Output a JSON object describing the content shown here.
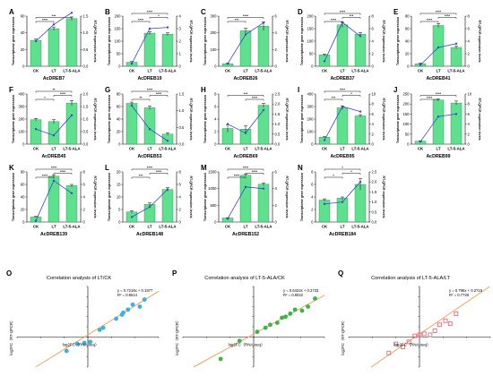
{
  "colors": {
    "bar": "#5ee08e",
    "bar_edge": "#238a4c",
    "line": "#3a47cc",
    "sig": "#111111",
    "scatter_1": "#3ab2dd",
    "scatter_2": "#39b54a",
    "scatter_3": "#e36b7c",
    "fit_line": "#f4a25e"
  },
  "shared": {
    "categories": [
      "CK",
      "LT",
      "LT-5-ALA"
    ],
    "ylabel_left": "Transcriptome gene expression",
    "ylabel_right": "RT-QPCR expression levels"
  },
  "chart_data": [
    {
      "type": "bar",
      "letter": "A",
      "title": "AcDREB7",
      "ylim_left": [
        0,
        60
      ],
      "yticks_left": [
        0,
        20,
        40,
        60
      ],
      "ylim_right": [
        0,
        1.5
      ],
      "yticks_right": [
        "0.0",
        "0.5",
        "1.0",
        "1.5"
      ],
      "bars": [
        31,
        45,
        57
      ],
      "errors": [
        1.5,
        2,
        2
      ],
      "line": [
        0.75,
        1.25,
        1.6
      ],
      "sig": [
        {
          "from": 0,
          "to": 1,
          "label": "****"
        },
        {
          "from": 0,
          "to": 2,
          "label": "***"
        }
      ]
    },
    {
      "type": "bar",
      "letter": "B",
      "title": "AcDREB19",
      "ylim_left": [
        0,
        200
      ],
      "yticks_left": [
        0,
        50,
        100,
        150,
        200
      ],
      "ylim_right": [
        0,
        4
      ],
      "yticks_right": [
        "0",
        "1",
        "2",
        "3",
        "4"
      ],
      "bars": [
        16,
        132,
        128
      ],
      "errors": [
        3,
        6,
        5
      ],
      "line": [
        0.2,
        3.0,
        3.1
      ],
      "sig": [
        {
          "from": 0,
          "to": 1,
          "label": "****"
        },
        {
          "from": 0,
          "to": 2,
          "label": "****"
        },
        {
          "from": 1,
          "to": 2,
          "label": "*"
        }
      ]
    },
    {
      "type": "bar",
      "letter": "C",
      "title": "AcDREB26",
      "ylim_left": [
        0,
        300
      ],
      "yticks_left": [
        0,
        100,
        200,
        300
      ],
      "ylim_right": [
        0,
        6
      ],
      "yticks_right": [
        "0",
        "2",
        "4",
        "6"
      ],
      "bars": [
        15,
        212,
        240
      ],
      "errors": [
        3,
        15,
        25
      ],
      "line": [
        0.3,
        3.8,
        5.2
      ],
      "sig": [
        {
          "from": 0,
          "to": 1,
          "label": "***"
        },
        {
          "from": 0,
          "to": 2,
          "label": "****"
        }
      ]
    },
    {
      "type": "bar",
      "letter": "D",
      "title": "AcDREB37",
      "ylim_left": [
        0,
        200
      ],
      "yticks_left": [
        0,
        50,
        100,
        150,
        200
      ],
      "ylim_right": [
        0,
        8
      ],
      "yticks_right": [
        "0",
        "2",
        "4",
        "6",
        "8"
      ],
      "bars": [
        45,
        165,
        128
      ],
      "errors": [
        4,
        10,
        6
      ],
      "line": [
        0.8,
        7.0,
        4.8
      ],
      "sig": [
        {
          "from": 0,
          "to": 1,
          "label": "****"
        },
        {
          "from": 0,
          "to": 2,
          "label": "****"
        },
        {
          "from": 1,
          "to": 2,
          "label": "***"
        }
      ]
    },
    {
      "type": "bar",
      "letter": "E",
      "title": "AcDREB41",
      "ylim_left": [
        0,
        80
      ],
      "yticks_left": [
        0,
        20,
        40,
        60,
        80
      ],
      "ylim_right": [
        0,
        8
      ],
      "yticks_right": [
        "0",
        "2",
        "4",
        "6",
        "8"
      ],
      "bars": [
        4,
        65,
        30
      ],
      "errors": [
        1,
        3,
        2
      ],
      "line": [
        0.2,
        3.0,
        3.6
      ],
      "sig": [
        {
          "from": 0,
          "to": 1,
          "label": "****"
        },
        {
          "from": 0,
          "to": 2,
          "label": "****"
        },
        {
          "from": 1,
          "to": 2,
          "label": "****"
        }
      ]
    },
    {
      "type": "bar",
      "letter": "F",
      "title": "AcDREB45",
      "ylim_left": [
        0,
        400
      ],
      "yticks_left": [
        0,
        100,
        200,
        300,
        400
      ],
      "ylim_right": [
        0,
        2.0
      ],
      "yticks_right": [
        "0.0",
        "0.5",
        "1.0",
        "1.5",
        "2.0"
      ],
      "bars": [
        195,
        180,
        328
      ],
      "errors": [
        10,
        15,
        20
      ],
      "line": [
        0.6,
        0.35,
        1.15
      ],
      "sig": [
        {
          "from": 0,
          "to": 1,
          "label": "*"
        },
        {
          "from": 0,
          "to": 2,
          "label": "**"
        },
        {
          "from": 1,
          "to": 2,
          "label": "****"
        }
      ]
    },
    {
      "type": "bar",
      "letter": "G",
      "title": "AcDREB53",
      "ylim_left": [
        0,
        80
      ],
      "yticks_left": [
        0,
        20,
        40,
        60,
        80
      ],
      "ylim_right": [
        0,
        1.5
      ],
      "yticks_right": [
        "0.0",
        "0.5",
        "1.0",
        "1.5"
      ],
      "bars": [
        65,
        58,
        16
      ],
      "errors": [
        2,
        3,
        2
      ],
      "line": [
        1.15,
        0.45,
        0.1
      ],
      "sig": [
        {
          "from": 0,
          "to": 1,
          "label": "**"
        },
        {
          "from": 0,
          "to": 2,
          "label": "****"
        },
        {
          "from": 1,
          "to": 2,
          "label": "****"
        }
      ]
    },
    {
      "type": "bar",
      "letter": "H",
      "title": "AcDREB69",
      "ylim_left": [
        0,
        8
      ],
      "yticks_left": [
        0,
        2,
        4,
        6,
        8
      ],
      "ylim_right": [
        0,
        2.5
      ],
      "yticks_right": [
        "0.0",
        "0.5",
        "1.0",
        "1.5",
        "2.0",
        "2.5"
      ],
      "bars": [
        2.5,
        2.4,
        6.2
      ],
      "errors": [
        0.6,
        0.5,
        0.3
      ],
      "line": [
        1.0,
        0.55,
        1.7
      ],
      "sig": [
        {
          "from": 0,
          "to": 2,
          "label": "***"
        },
        {
          "from": 1,
          "to": 2,
          "label": "****"
        }
      ]
    },
    {
      "type": "bar",
      "letter": "I",
      "title": "AcDREB95",
      "ylim_left": [
        0,
        400
      ],
      "yticks_left": [
        0,
        100,
        200,
        300,
        400
      ],
      "ylim_right": [
        0,
        10
      ],
      "yticks_right": [
        "0",
        "2",
        "4",
        "6",
        "8",
        "10"
      ],
      "bars": [
        55,
        290,
        225
      ],
      "errors": [
        5,
        15,
        10
      ],
      "line": [
        0.8,
        7.5,
        6.5
      ],
      "sig": [
        {
          "from": 0,
          "to": 1,
          "label": "***"
        },
        {
          "from": 0,
          "to": 2,
          "label": "****"
        },
        {
          "from": 1,
          "to": 2,
          "label": "*"
        }
      ]
    },
    {
      "type": "bar",
      "letter": "J",
      "title": "AcDREB99",
      "ylim_left": [
        0,
        250
      ],
      "yticks_left": [
        0,
        50,
        100,
        150,
        200,
        250
      ],
      "ylim_right": [
        0,
        10
      ],
      "yticks_right": [
        "0",
        "2",
        "4",
        "6",
        "8",
        "10"
      ],
      "bars": [
        15,
        220,
        205
      ],
      "errors": [
        2,
        5,
        10
      ],
      "line": [
        0.5,
        5.5,
        6.0
      ],
      "sig": [
        {
          "from": 0,
          "to": 1,
          "label": "****"
        },
        {
          "from": 0,
          "to": 2,
          "label": "****"
        }
      ]
    },
    {
      "type": "bar",
      "letter": "K",
      "title": "AcDREB139",
      "ylim_left": [
        0,
        80
      ],
      "yticks_left": [
        0,
        20,
        40,
        60,
        80
      ],
      "ylim_right": [
        0,
        8
      ],
      "yticks_right": [
        "0",
        "2",
        "4",
        "6",
        "8"
      ],
      "bars": [
        8,
        73,
        58
      ],
      "errors": [
        1,
        2,
        2
      ],
      "line": [
        0.2,
        6.6,
        4.6
      ],
      "sig": [
        {
          "from": 0,
          "to": 1,
          "label": "****"
        },
        {
          "from": 0,
          "to": 2,
          "label": "****"
        },
        {
          "from": 1,
          "to": 2,
          "label": "****"
        }
      ]
    },
    {
      "type": "bar",
      "letter": "L",
      "title": "AcDREB148",
      "ylim_left": [
        0,
        20
      ],
      "yticks_left": [
        0,
        5,
        10,
        15,
        20
      ],
      "ylim_right": [
        0,
        8
      ],
      "yticks_right": [
        "0",
        "2",
        "4",
        "6",
        "8"
      ],
      "bars": [
        4,
        7,
        13
      ],
      "errors": [
        0.5,
        0.6,
        0.7
      ],
      "line": [
        0.8,
        2.4,
        5.2
      ],
      "sig": [
        {
          "from": 0,
          "to": 1,
          "label": "***"
        },
        {
          "from": 0,
          "to": 2,
          "label": "****"
        },
        {
          "from": 1,
          "to": 2,
          "label": "****"
        }
      ]
    },
    {
      "type": "bar",
      "letter": "M",
      "title": "AcDREB152",
      "ylim_left": [
        0,
        1500
      ],
      "yticks_left": [
        0,
        500,
        1000,
        1500
      ],
      "ylim_right": [
        0,
        6
      ],
      "yticks_right": [
        "0",
        "2",
        "4",
        "6"
      ],
      "bars": [
        120,
        1400,
        1130
      ],
      "errors": [
        10,
        30,
        40
      ],
      "line": [
        0.4,
        4.2,
        4.0
      ],
      "sig": [
        {
          "from": 0,
          "to": 1,
          "label": "****"
        },
        {
          "from": 0,
          "to": 2,
          "label": "****"
        },
        {
          "from": 1,
          "to": 2,
          "label": "****"
        }
      ]
    },
    {
      "type": "bar",
      "letter": "N",
      "title": "AcDREB184",
      "ylim_left": [
        0,
        8
      ],
      "yticks_left": [
        0,
        2,
        4,
        6,
        8
      ],
      "ylim_right": [
        0,
        2.5
      ],
      "yticks_right": [
        "0.0",
        "0.5",
        "1.0",
        "1.5",
        "2.0",
        "2.5"
      ],
      "bars": [
        3.5,
        3.8,
        6.0
      ],
      "errors": [
        0.2,
        0.2,
        0.9
      ],
      "line": [
        0.9,
        1.0,
        2.0
      ],
      "sig": [
        {
          "from": 0,
          "to": 1,
          "label": "*"
        },
        {
          "from": 0,
          "to": 2,
          "label": "*"
        },
        {
          "from": 1,
          "to": 2,
          "label": "*"
        }
      ]
    },
    {
      "type": "scatter",
      "letter": "O",
      "title": "Correlation analysis of LT/CK",
      "equation": "y = 0.7216x + 0.1977",
      "r2": "R² = 0.8514",
      "xlabel": "log2FC（RNA-seq）",
      "ylabel": "log2FC（RT-QPCR）",
      "xlim": [
        -6,
        6
      ],
      "ylim": [
        -3,
        5
      ],
      "color": "scatter_1",
      "fit": [
        0.7216,
        0.1977
      ],
      "points": [
        [
          -1.8,
          -1.4
        ],
        [
          -0.9,
          -0.7
        ],
        [
          -0.3,
          -0.6
        ],
        [
          0.2,
          -0.5
        ],
        [
          1.0,
          0.7
        ],
        [
          1.3,
          0.9
        ],
        [
          2.4,
          1.8
        ],
        [
          2.9,
          2.2
        ],
        [
          3.0,
          2.4
        ],
        [
          3.4,
          2.7
        ],
        [
          3.8,
          3.2
        ],
        [
          4.4,
          3.0
        ],
        [
          4.8,
          3.7
        ]
      ]
    },
    {
      "type": "scatter",
      "letter": "P",
      "title": "Correlation analysis of LT-5-ALA/CK",
      "equation": "y = 0.6422x + 0.2733",
      "r2": "R² = 0.8022",
      "xlabel": "log2FC（RNA-seq）",
      "ylabel": "log2FC（RT-QPCR）",
      "xlim": [
        -6,
        6
      ],
      "ylim": [
        -3,
        5
      ],
      "color": "scatter_2",
      "fit": [
        0.6422,
        0.2733
      ],
      "points": [
        [
          -2.8,
          -2.2
        ],
        [
          -1.2,
          -0.4
        ],
        [
          0.3,
          0.5
        ],
        [
          1.0,
          0.9
        ],
        [
          1.4,
          1.2
        ],
        [
          2.0,
          1.4
        ],
        [
          2.4,
          1.9
        ],
        [
          2.7,
          2.0
        ],
        [
          3.1,
          2.3
        ],
        [
          3.5,
          2.7
        ],
        [
          4.1,
          2.6
        ],
        [
          4.6,
          3.0
        ],
        [
          5.2,
          3.8
        ]
      ]
    },
    {
      "type": "scatter",
      "letter": "Q",
      "title": "Correlation analysis of LT-5-ALA/LT",
      "equation": "y = 0.796x + 0.2715",
      "r2": "R² = 0.7728",
      "xlabel": "log2FC（RNA-seq）",
      "ylabel": "log2FC（RT-QPCR）",
      "xlim": [
        -6,
        6
      ],
      "ylim": [
        -3,
        5
      ],
      "color": "scatter_3",
      "fit": [
        0.796,
        0.2715
      ],
      "points": [
        [
          -2.6,
          -1.6
        ],
        [
          -2.0,
          -0.7
        ],
        [
          -1.4,
          -1.0
        ],
        [
          -0.9,
          -0.5
        ],
        [
          -0.4,
          0.1
        ],
        [
          0.0,
          0.2
        ],
        [
          0.4,
          0.3
        ],
        [
          0.9,
          0.2
        ],
        [
          1.3,
          0.6
        ],
        [
          1.7,
          1.2
        ],
        [
          2.2,
          1.6
        ],
        [
          2.6,
          1.3
        ],
        [
          3.1,
          2.3
        ]
      ]
    }
  ]
}
